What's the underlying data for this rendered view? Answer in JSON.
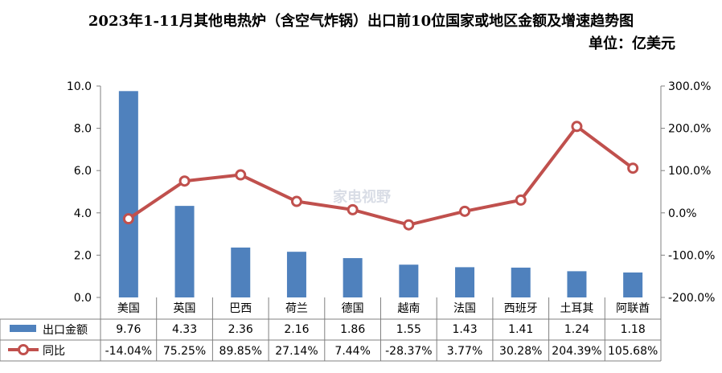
{
  "title": "2023年1-11月其他电热炉（含空气炸锅）出口前10位国家或地区金额及增速趋势图",
  "unit_label": "单位：亿美元",
  "watermark": "家电视野",
  "chart_data": {
    "type": "bar",
    "categories": [
      "美国",
      "英国",
      "巴西",
      "荷兰",
      "德国",
      "越南",
      "法国",
      "西班牙",
      "土耳其",
      "阿联酋"
    ],
    "series": [
      {
        "name": "出口金额",
        "type": "bar",
        "axis": "left",
        "color": "#4f81bd",
        "values": [
          9.76,
          4.33,
          2.36,
          2.16,
          1.86,
          1.55,
          1.43,
          1.41,
          1.24,
          1.18
        ],
        "labels": [
          "9.76",
          "4.33",
          "2.36",
          "2.16",
          "1.86",
          "1.55",
          "1.43",
          "1.41",
          "1.24",
          "1.18"
        ]
      },
      {
        "name": "同比",
        "type": "line",
        "axis": "right",
        "color": "#c0504d",
        "values": [
          -14.04,
          75.25,
          89.85,
          27.14,
          7.44,
          -28.37,
          3.77,
          30.28,
          204.39,
          105.68
        ],
        "labels": [
          "-14.04%",
          "75.25%",
          "89.85%",
          "27.14%",
          "7.44%",
          "-28.37%",
          "3.77%",
          "30.28%",
          "204.39%",
          "105.68%"
        ]
      }
    ],
    "y_left": {
      "min": 0,
      "max": 10,
      "ticks": [
        "0.0",
        "2.0",
        "4.0",
        "6.0",
        "8.0",
        "10.0"
      ]
    },
    "y_right": {
      "min": -200,
      "max": 300,
      "ticks": [
        "-200.0%",
        "-100.0%",
        "0.0%",
        "100.0%",
        "200.0%",
        "300.0%"
      ]
    },
    "data_table": true
  }
}
